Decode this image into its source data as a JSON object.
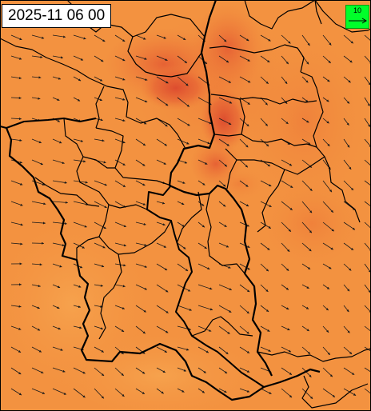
{
  "header": {
    "timestamp": "2025-11 06 00"
  },
  "legend": {
    "reference_speed": "10",
    "box_color": "#00ff2a",
    "icon": "wind-arrow-icon"
  },
  "palette": {
    "field_base": "#f39240",
    "field_light": "#f6a24a",
    "field_mid": "#ee7a38",
    "field_dark": "#e45a32",
    "field_darkest": "#dc4a2e",
    "border_color": "#000000",
    "arrow_color": "#1a1a1a",
    "frame_color": "#000000"
  },
  "wind_field": {
    "prevailing_direction": "from west-north-west",
    "reference_speed_units": "10"
  }
}
